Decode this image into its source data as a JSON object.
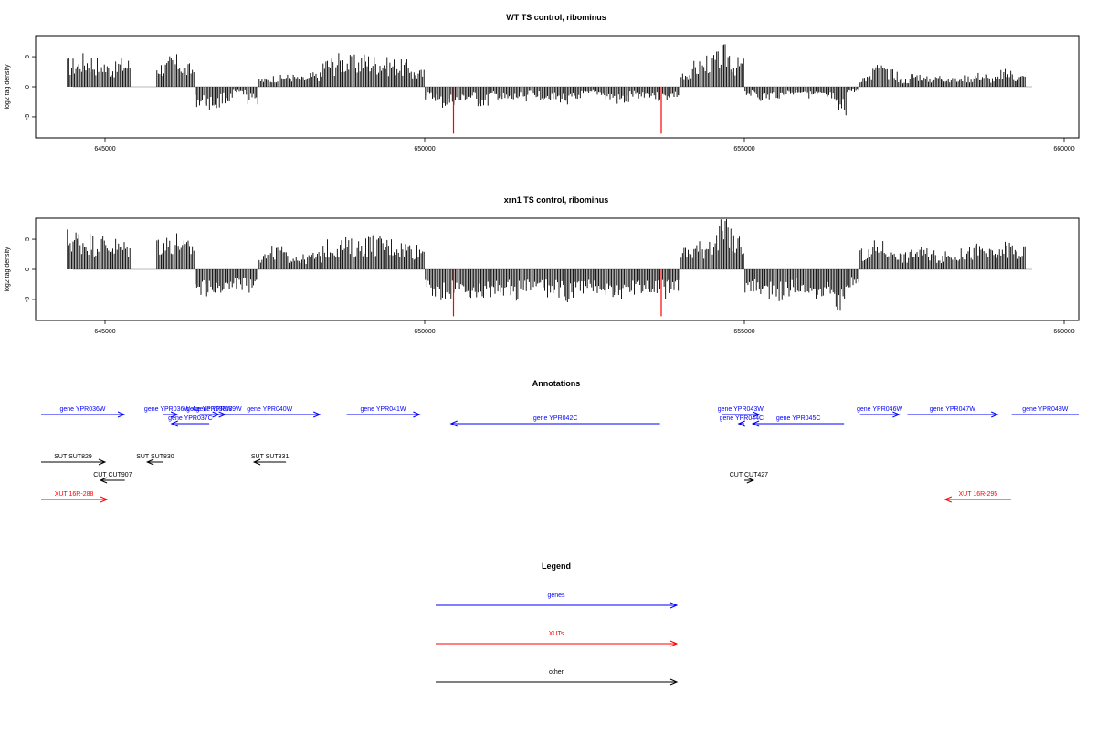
{
  "chart_data": [
    {
      "type": "bar",
      "title": "WT TS control, ribominus",
      "ylabel": "log2 tag density",
      "xlabel": "",
      "xlim": [
        644000,
        660100
      ],
      "ylim": [
        -8.5,
        8.5
      ],
      "x_ticks": [
        645000,
        650000,
        655000,
        660000
      ],
      "x_tick_labels": [
        "645000",
        "650000",
        "655000",
        "660000"
      ],
      "y_ticks": [
        5,
        0,
        -5
      ],
      "y_tick_labels": [
        "5",
        "0",
        "-5"
      ],
      "series": [
        {
          "color": "#000000",
          "x": [
            644500,
            644700,
            644900,
            645100,
            645300,
            645900,
            646100,
            646300,
            646500,
            646700,
            646900,
            647100,
            647300,
            647500,
            647700,
            647900,
            648100,
            648300,
            648500,
            648700,
            648900,
            649100,
            649300,
            649500,
            649700,
            649900,
            650100,
            650300,
            650500,
            650700,
            650900,
            651100,
            651300,
            651500,
            651700,
            651900,
            652100,
            652300,
            652500,
            652700,
            652900,
            653100,
            653300,
            653500,
            653700,
            653900,
            654100,
            654300,
            654500,
            654700,
            654900,
            655100,
            655300,
            655500,
            655700,
            655900,
            656100,
            656300,
            656500,
            656700,
            656900,
            657100,
            657300,
            657500,
            657700,
            657900,
            658100,
            658300,
            658500,
            658700,
            658900,
            659100,
            659300
          ],
          "values": [
            5.0,
            5.8,
            5.2,
            4.2,
            5.0,
            4.5,
            5.5,
            4.0,
            -3.5,
            -4.0,
            -2.8,
            -1.5,
            -3.0,
            1.5,
            2.0,
            2.2,
            1.8,
            2.5,
            5.2,
            5.8,
            5.4,
            5.9,
            5.5,
            5.0,
            4.6,
            3.0,
            -2.5,
            -3.8,
            -3.2,
            -2.5,
            -3.5,
            -2.2,
            -3.0,
            -2.5,
            -1.8,
            -2.2,
            -2.8,
            -3.0,
            -2.0,
            -1.5,
            -2.5,
            -3.2,
            -2.0,
            -1.8,
            -2.5,
            -2.0,
            3.0,
            4.5,
            6.0,
            7.2,
            5.0,
            -1.5,
            -2.5,
            -2.0,
            -1.5,
            -1.2,
            -2.0,
            -2.5,
            -5.5,
            -1.0,
            2.0,
            4.0,
            3.0,
            1.5,
            2.5,
            1.8,
            2.2,
            1.5,
            2.0,
            2.5,
            1.8,
            3.0,
            2.2
          ]
        },
        {
          "color": "#ff0000",
          "x": [
            650450,
            653700
          ],
          "values": [
            -7.8,
            -7.8
          ]
        }
      ]
    },
    {
      "type": "bar",
      "title": "xrn1 TS control, ribominus",
      "ylabel": "log2 tag density",
      "xlabel": "",
      "xlim": [
        644000,
        660100
      ],
      "ylim": [
        -8.5,
        8.5
      ],
      "x_ticks": [
        645000,
        650000,
        655000,
        660000
      ],
      "x_tick_labels": [
        "645000",
        "650000",
        "655000",
        "660000"
      ],
      "y_ticks": [
        5,
        0,
        -5
      ],
      "y_tick_labels": [
        "5",
        "0",
        "-5"
      ],
      "series": [
        {
          "color": "#000000",
          "x": [
            644500,
            644700,
            644900,
            645100,
            645300,
            645900,
            646100,
            646300,
            646500,
            646700,
            646900,
            647100,
            647300,
            647500,
            647700,
            647900,
            648100,
            648300,
            648500,
            648700,
            648900,
            649100,
            649300,
            649500,
            649700,
            649900,
            650100,
            650300,
            650500,
            650700,
            650900,
            651100,
            651300,
            651500,
            651700,
            651900,
            652100,
            652300,
            652500,
            652700,
            652900,
            653100,
            653300,
            653500,
            653700,
            653900,
            654100,
            654300,
            654500,
            654700,
            654900,
            655100,
            655300,
            655500,
            655700,
            655900,
            656100,
            656300,
            656500,
            656700,
            656900,
            657100,
            657300,
            657500,
            657700,
            657900,
            658100,
            658300,
            658500,
            658700,
            658900,
            659100,
            659300
          ],
          "values": [
            7.0,
            6.5,
            6.0,
            5.5,
            5.0,
            6.0,
            6.5,
            5.0,
            -4.5,
            -5.0,
            -4.0,
            -3.5,
            -4.0,
            3.0,
            4.0,
            3.0,
            2.5,
            3.0,
            5.0,
            5.5,
            5.2,
            6.0,
            5.8,
            5.5,
            5.0,
            4.5,
            -4.5,
            -5.5,
            -5.0,
            -4.8,
            -5.5,
            -5.0,
            -4.5,
            -5.2,
            -4.0,
            -4.8,
            -5.0,
            -5.5,
            -4.5,
            -4.0,
            -5.0,
            -5.5,
            -4.2,
            -4.5,
            -5.0,
            -4.0,
            4.0,
            5.0,
            6.5,
            8.5,
            6.0,
            -4.0,
            -5.0,
            -5.5,
            -4.5,
            -4.0,
            -5.0,
            -4.5,
            -7.5,
            -3.0,
            3.5,
            5.0,
            4.5,
            3.0,
            4.0,
            3.5,
            3.0,
            3.5,
            4.0,
            4.5,
            3.5,
            5.0,
            4.0
          ]
        },
        {
          "color": "#ff0000",
          "x": [
            650450,
            653700
          ],
          "values": [
            -7.8,
            -7.8
          ]
        }
      ]
    }
  ],
  "annotations": {
    "title": "Annotations",
    "features": [
      {
        "label": "gene YPR036W",
        "kind": "gene",
        "color": "#0000ff",
        "start": 644000,
        "end": 645300,
        "strand": "+",
        "row": 0
      },
      {
        "label": "gene YPR036W-A",
        "kind": "gene",
        "color": "#0000ff",
        "start": 645910,
        "end": 646130,
        "strand": "+",
        "row": 0
      },
      {
        "label": "gene YPR038W",
        "kind": "gene",
        "color": "#0000ff",
        "start": 646480,
        "end": 646780,
        "strand": "+",
        "row": 0
      },
      {
        "label": "gene YPR039W",
        "kind": "gene",
        "color": "#0000ff",
        "start": 646680,
        "end": 646880,
        "strand": "+",
        "row": 0
      },
      {
        "label": "gene YPR040W",
        "kind": "gene",
        "color": "#0000ff",
        "start": 646790,
        "end": 648360,
        "strand": "+",
        "row": 0
      },
      {
        "label": "gene YPR041W",
        "kind": "gene",
        "color": "#0000ff",
        "start": 648780,
        "end": 649920,
        "strand": "+",
        "row": 0
      },
      {
        "label": "gene YPR037C",
        "kind": "gene",
        "color": "#0000ff",
        "start": 646040,
        "end": 646630,
        "strand": "-",
        "row": 1
      },
      {
        "label": "gene YPR042C",
        "kind": "gene",
        "color": "#0000ff",
        "start": 650410,
        "end": 653680,
        "strand": "-",
        "row": 1
      },
      {
        "label": "gene YPR043W",
        "kind": "gene",
        "color": "#0000ff",
        "start": 654650,
        "end": 655230,
        "strand": "+",
        "row": 0
      },
      {
        "label": "gene YPR044C",
        "kind": "gene",
        "color": "#0000ff",
        "start": 654910,
        "end": 655000,
        "strand": "-",
        "row": 1
      },
      {
        "label": "gene YPR045C",
        "kind": "gene",
        "color": "#0000ff",
        "start": 655130,
        "end": 656560,
        "strand": "-",
        "row": 1
      },
      {
        "label": "gene YPR046W",
        "kind": "gene",
        "color": "#0000ff",
        "start": 656810,
        "end": 657420,
        "strand": "+",
        "row": 0
      },
      {
        "label": "gene YPR047W",
        "kind": "gene",
        "color": "#0000ff",
        "start": 657550,
        "end": 658960,
        "strand": "+",
        "row": 0
      },
      {
        "label": "gene YPR048W",
        "kind": "gene",
        "color": "#0000ff",
        "start": 659180,
        "end": 660500,
        "strand": "+",
        "row": 0
      },
      {
        "label": "SUT SUT829",
        "kind": "other",
        "color": "#000000",
        "start": 644000,
        "end": 645000,
        "strand": "+",
        "row": 2
      },
      {
        "label": "SUT SUT830",
        "kind": "other",
        "color": "#000000",
        "start": 645660,
        "end": 645910,
        "strand": "-",
        "row": 2
      },
      {
        "label": "SUT SUT831",
        "kind": "other",
        "color": "#000000",
        "start": 647330,
        "end": 647830,
        "strand": "-",
        "row": 2
      },
      {
        "label": "CUT CUT907",
        "kind": "other",
        "color": "#000000",
        "start": 644930,
        "end": 645310,
        "strand": "-",
        "row": 3
      },
      {
        "label": "CUT CUT427",
        "kind": "other",
        "color": "#000000",
        "start": 655000,
        "end": 655140,
        "strand": "+",
        "row": 3
      },
      {
        "label": "XUT 16R-288",
        "kind": "xut",
        "color": "#ff0000",
        "start": 644000,
        "end": 645030,
        "strand": "+",
        "row": 4
      },
      {
        "label": "XUT 16R-295",
        "kind": "xut",
        "color": "#ff0000",
        "start": 658140,
        "end": 659170,
        "strand": "-",
        "row": 4
      }
    ]
  },
  "legend": {
    "title": "Legend",
    "items": [
      {
        "label": "genes",
        "color": "#0000ff"
      },
      {
        "label": "XUTs",
        "color": "#ff0000"
      },
      {
        "label": "other",
        "color": "#000000"
      }
    ]
  }
}
